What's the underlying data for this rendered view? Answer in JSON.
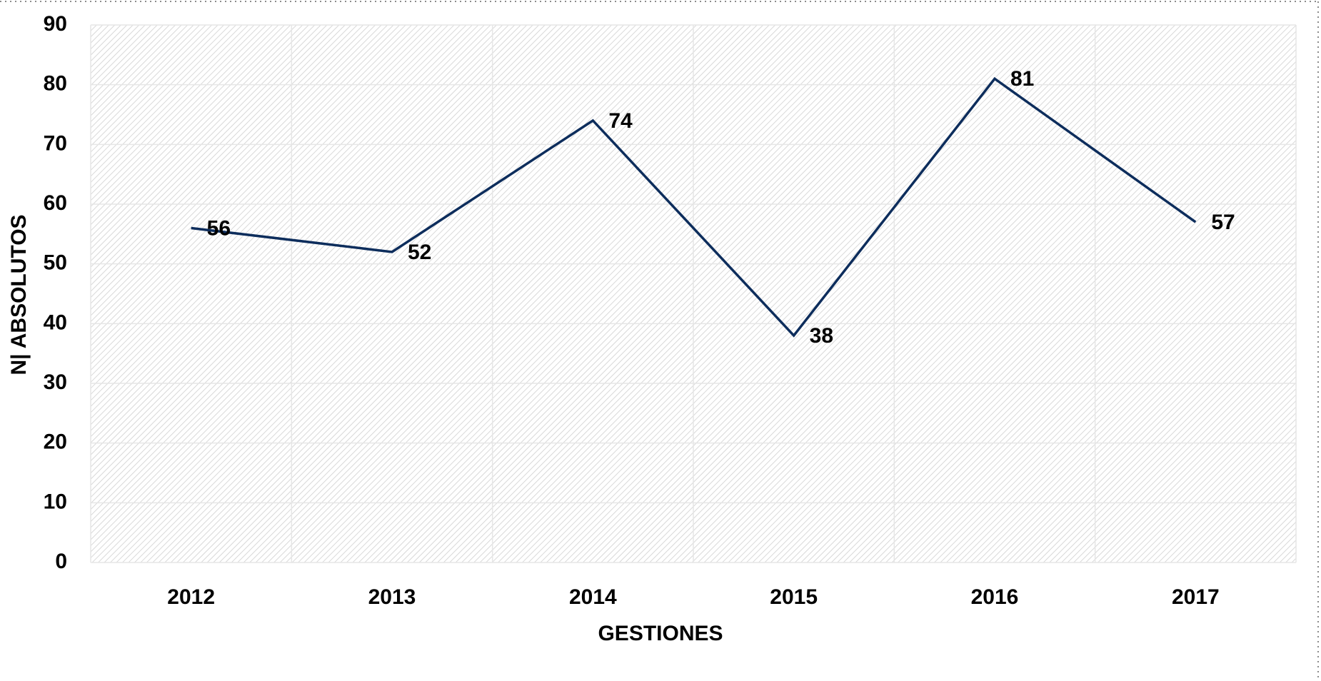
{
  "chart_data": {
    "type": "line",
    "categories": [
      "2012",
      "2013",
      "2014",
      "2015",
      "2016",
      "2017"
    ],
    "series": [
      {
        "name": "GESTIONES",
        "color": "#0d2d5c",
        "values": [
          56,
          52,
          74,
          38,
          81,
          57
        ]
      }
    ],
    "xlabel": "GESTIONES",
    "ylabel": "N| ABSOLUTOS",
    "ylim": [
      0,
      90
    ],
    "yticks": [
      0,
      10,
      20,
      30,
      40,
      50,
      60,
      70,
      80,
      90
    ],
    "grid": true
  }
}
